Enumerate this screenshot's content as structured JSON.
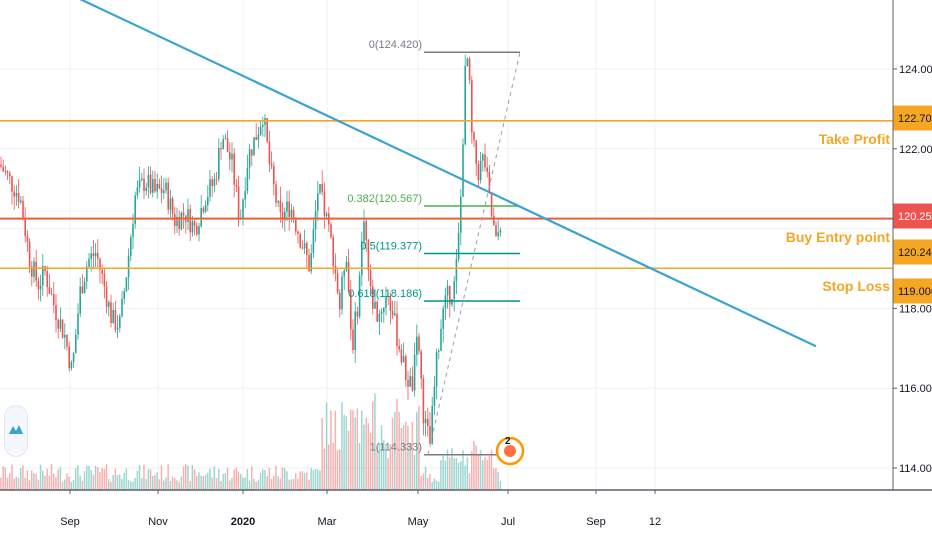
{
  "chart_data": {
    "type": "candlestick",
    "price_axis": {
      "ticks": [
        "124.000",
        "122.000",
        "118.000",
        "116.000",
        "114.000"
      ],
      "range": [
        113.4,
        125.5
      ]
    },
    "time_axis": {
      "ticks": [
        "Sep",
        "Nov",
        "2020",
        "Mar",
        "May",
        "Jul",
        "Sep",
        "12"
      ]
    },
    "grid": true,
    "price_labels": [
      {
        "value": "122.701",
        "style": "orange"
      },
      {
        "value": "120.255",
        "style": "red"
      },
      {
        "value": "120.242",
        "style": "orange"
      },
      {
        "value": "119.006",
        "style": "orange"
      }
    ],
    "horizontal_levels": [
      {
        "name": "Take Profit",
        "price": 122.701,
        "color": "#f5a623"
      },
      {
        "name": "Buy Entry point",
        "price": 120.242,
        "color": "#f5a623"
      },
      {
        "name": "Stop Loss",
        "price": 119.006,
        "color": "#f5a623"
      },
      {
        "name": "",
        "price": 120.255,
        "color": "#ef5350"
      }
    ],
    "level_labels": {
      "take_profit": "Take Profit",
      "buy_entry": "Buy Entry point",
      "stop_loss": "Stop Loss"
    },
    "fibonacci": [
      {
        "label": "0(124.420)",
        "price": 124.42,
        "color": "#787b86"
      },
      {
        "label": "0.382(120.567)",
        "price": 120.567,
        "color": "#4caf50"
      },
      {
        "label": "0.5(119.377)",
        "price": 119.377,
        "color": "#009688"
      },
      {
        "label": "0.618(118.186)",
        "price": 118.186,
        "color": "#009688"
      },
      {
        "label": "1(114.333)",
        "price": 114.333,
        "color": "#787b86"
      }
    ],
    "trendline": {
      "color": "#3ba3d0",
      "from": {
        "date": "2019-06",
        "price": 126.7
      },
      "to": {
        "date": "2020-10",
        "price": 117.0
      }
    },
    "fib_anchor": {
      "low": {
        "date": "2020-04-30",
        "price": 114.333
      },
      "high": {
        "date": "2020-06-05",
        "price": 124.42
      }
    },
    "candle_colors": {
      "up": "#26a69a",
      "down": "#ef5350"
    },
    "earnings_badge": "2"
  }
}
